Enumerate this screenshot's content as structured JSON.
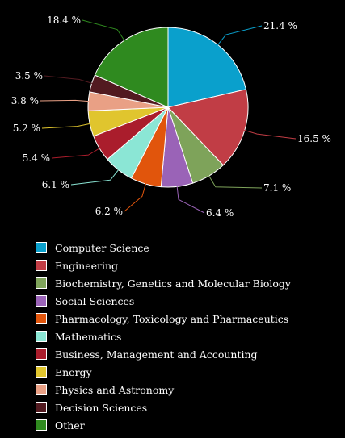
{
  "chart_data": {
    "type": "pie",
    "title": "",
    "start_angle_deg": 0,
    "direction": "clockwise",
    "legend_position": "bottom",
    "slices": [
      {
        "name": "Computer Science",
        "value": 21.4,
        "label": "21.4 %",
        "color": "#0aa0cc"
      },
      {
        "name": "Engineering",
        "value": 16.5,
        "label": "16.5 %",
        "color": "#c13d45"
      },
      {
        "name": "Biochemistry, Genetics and Molecular Biology",
        "value": 7.1,
        "label": "7.1 %",
        "color": "#7ea35a"
      },
      {
        "name": "Social Sciences",
        "value": 6.4,
        "label": "6.4 %",
        "color": "#9a63b7"
      },
      {
        "name": "Pharmacology, Toxicology and Pharmaceutics",
        "value": 6.2,
        "label": "6.2 %",
        "color": "#e1550c"
      },
      {
        "name": "Mathematics",
        "value": 6.1,
        "label": "6.1 %",
        "color": "#8be6d5"
      },
      {
        "name": "Business, Management and Accounting",
        "value": 5.4,
        "label": "5.4 %",
        "color": "#aa1d2c"
      },
      {
        "name": "Energy",
        "value": 5.2,
        "label": "5.2 %",
        "color": "#e0c52e"
      },
      {
        "name": "Physics and Astronomy",
        "value": 3.8,
        "label": "3.8 %",
        "color": "#e9a085"
      },
      {
        "name": "Decision Sciences",
        "value": 3.5,
        "label": "3.5 %",
        "color": "#521a20"
      },
      {
        "name": "Other",
        "value": 18.4,
        "label": "18.4 %",
        "color": "#2f8a1f"
      }
    ]
  }
}
